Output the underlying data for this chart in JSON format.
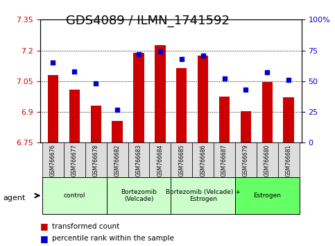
{
  "title": "GDS4089 / ILMN_1741592",
  "samples": [
    "GSM766676",
    "GSM766677",
    "GSM766678",
    "GSM766682",
    "GSM766683",
    "GSM766684",
    "GSM766685",
    "GSM766686",
    "GSM766687",
    "GSM766679",
    "GSM766680",
    "GSM766681"
  ],
  "bar_values": [
    7.08,
    7.01,
    6.93,
    6.855,
    7.19,
    7.225,
    7.115,
    7.175,
    6.975,
    6.905,
    7.045,
    6.97
  ],
  "scatter_values": [
    65,
    58,
    48,
    27,
    72,
    74,
    68,
    71,
    52,
    43,
    57,
    51
  ],
  "ylim_left": [
    6.75,
    7.35
  ],
  "ylim_right": [
    0,
    100
  ],
  "yticks_left": [
    6.75,
    6.9,
    7.05,
    7.2,
    7.35
  ],
  "yticks_right": [
    0,
    25,
    50,
    75,
    100
  ],
  "ytick_labels_left": [
    "6.75",
    "6.9",
    "7.05",
    "7.2",
    "7.35"
  ],
  "ytick_labels_right": [
    "0",
    "25",
    "50",
    "75",
    "100%"
  ],
  "bar_color": "#CC0000",
  "scatter_color": "#0000CC",
  "bar_baseline": 6.75,
  "groups": [
    {
      "label": "control",
      "start": 0,
      "end": 3,
      "color": "#CCFFCC"
    },
    {
      "label": "Bortezomib\n(Velcade)",
      "start": 3,
      "end": 6,
      "color": "#CCFFCC"
    },
    {
      "label": "Bortezomib (Velcade) +\nEstrogen",
      "start": 6,
      "end": 9,
      "color": "#CCFFCC"
    },
    {
      "label": "Estrogen",
      "start": 9,
      "end": 12,
      "color": "#66FF66"
    }
  ],
  "agent_label": "agent",
  "legend_bar_label": "transformed count",
  "legend_scatter_label": "percentile rank within the sample",
  "grid_color": "#000000",
  "title_fontsize": 13,
  "tick_fontsize": 8,
  "label_fontsize": 9,
  "bg_color": "#FFFFFF"
}
